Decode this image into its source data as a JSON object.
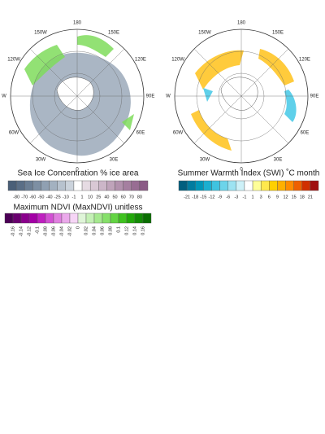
{
  "left_map": {
    "lon_labels": [
      "180",
      "150E",
      "120E",
      "90E",
      "60E",
      "30E",
      "0",
      "30W",
      "60W",
      "W",
      "120W",
      "150W"
    ]
  },
  "right_map": {
    "lon_labels": [
      "180",
      "150E",
      "120E",
      "90E",
      "60E",
      "30E",
      "0",
      "30W",
      "60W",
      "W",
      "120W",
      "150W"
    ]
  },
  "legends": [
    {
      "title": "Sea Ice Concentration  % ice area",
      "ticks": [
        "-80",
        "-70",
        "-60",
        "-50",
        "-40",
        "-25",
        "-10",
        "-1",
        "1",
        "10",
        "25",
        "40",
        "50",
        "60",
        "70",
        "80"
      ],
      "colors": [
        "#4a5f78",
        "#5a6e86",
        "#6b7e94",
        "#7d8fa3",
        "#90a0b2",
        "#a3b1c0",
        "#b7c2ce",
        "#cbd3dc",
        "#ffffff",
        "#e6dbe3",
        "#d9c8d5",
        "#ccb6c8",
        "#bfa3ba",
        "#b291ad",
        "#a57fa0",
        "#986d93",
        "#8b5b86"
      ]
    },
    {
      "title": "Maximum NDVI (MaxNDVI) unitless",
      "ticks": [
        "-0.16",
        "-0.14",
        "-0.12",
        "-0.1",
        "-0.08",
        "-0.06",
        "-0.04",
        "-0.02",
        "0",
        "0.02",
        "0.04",
        "0.06",
        "0.08",
        "0.1",
        "0.12",
        "0.14",
        "0.16"
      ],
      "colors": [
        "#4b0055",
        "#6a006f",
        "#8a008c",
        "#a300a6",
        "#bf1fc0",
        "#d24fd3",
        "#e07fe0",
        "#eba9eb",
        "#f6d5f6",
        "#dff5d8",
        "#c4f0b5",
        "#a6e98f",
        "#86e06a",
        "#63d443",
        "#3fc21f",
        "#22a80a",
        "#138b05",
        "#0a6e02"
      ]
    },
    {
      "title": "Summer Warmth Index (SWI) ˚C month",
      "ticks": [
        "-21",
        "-18",
        "-15",
        "-12",
        "-9",
        "-6",
        "-3",
        "-1",
        "1",
        "3",
        "6",
        "9",
        "12",
        "15",
        "18",
        "21"
      ],
      "colors": [
        "#005f7f",
        "#007c9f",
        "#0096b8",
        "#1aafd0",
        "#3fc3e0",
        "#6cd4ea",
        "#9ce3f2",
        "#cdf1f8",
        "#ffffff",
        "#ffff99",
        "#ffe84d",
        "#ffd000",
        "#ffb000",
        "#ff8c00",
        "#ee6000",
        "#d03000",
        "#a01010"
      ]
    }
  ]
}
